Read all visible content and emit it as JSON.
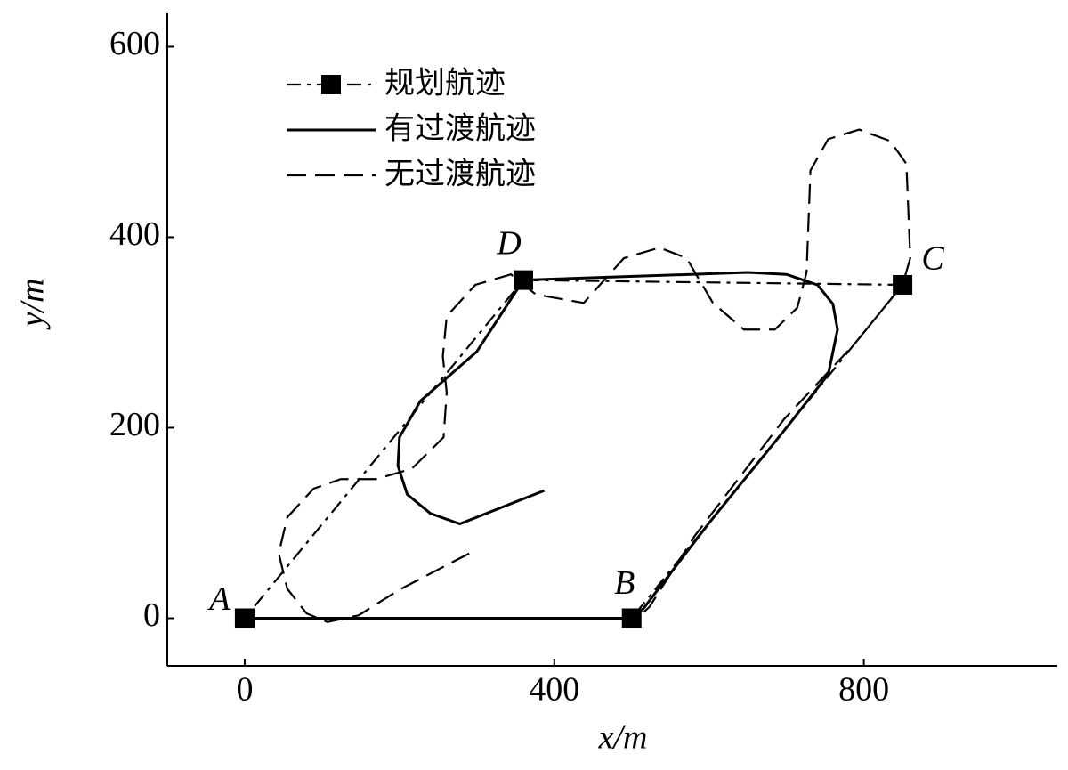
{
  "chart_data": {
    "type": "line",
    "x_label": "x/m",
    "y_label": "y/m",
    "xlim": [
      -100,
      1050
    ],
    "ylim": [
      -50,
      635
    ],
    "xticks": [
      0,
      400,
      800
    ],
    "yticks": [
      0,
      200,
      400,
      600
    ],
    "legend": "upper left",
    "point_labels": [
      "A",
      "B",
      "C",
      "D"
    ],
    "series": [
      {
        "name": "规划航迹",
        "color": "#000000",
        "linestyle": "dashdot",
        "marker": "square",
        "x": [
          0,
          500,
          850,
          360,
          0
        ],
        "values": [
          0,
          0,
          350,
          355,
          0
        ]
      },
      {
        "name": "有过渡航迹",
        "color": "#000000",
        "linestyle": "solid",
        "x": [
          0,
          500,
          515,
          600,
          700,
          754,
          766,
          760,
          740,
          700,
          650,
          360,
          300,
          227,
          200,
          198,
          210,
          240,
          278,
          387
        ],
        "values": [
          0,
          0,
          10,
          100,
          200,
          256,
          303,
          330,
          350,
          361,
          363,
          355,
          280,
          228,
          190,
          160,
          130,
          110,
          99,
          134
        ]
      },
      {
        "name": "无过渡航迹",
        "color": "#000000",
        "linestyle": "dashed",
        "x": [
          290,
          200,
          147,
          107,
          80,
          55,
          44,
          55,
          89,
          124,
          170,
          216,
          257,
          261,
          256,
          261,
          298,
          344,
          376,
          438,
          490,
          536,
          571,
          605,
          645,
          685,
          714,
          726,
          731,
          754,
          794,
          834,
          855,
          860,
          850,
          789,
          697,
          582,
          523,
          510
        ],
        "values": [
          68,
          30,
          3,
          -4,
          5,
          31,
          68,
          106,
          136,
          146,
          146,
          157,
          190,
          237,
          275,
          317,
          350,
          361,
          340,
          331,
          378,
          389,
          378,
          331,
          303,
          303,
          326,
          363,
          470,
          503,
          513,
          501,
          477,
          378,
          350,
          289,
          209,
          87,
          12,
          2
        ]
      }
    ]
  }
}
